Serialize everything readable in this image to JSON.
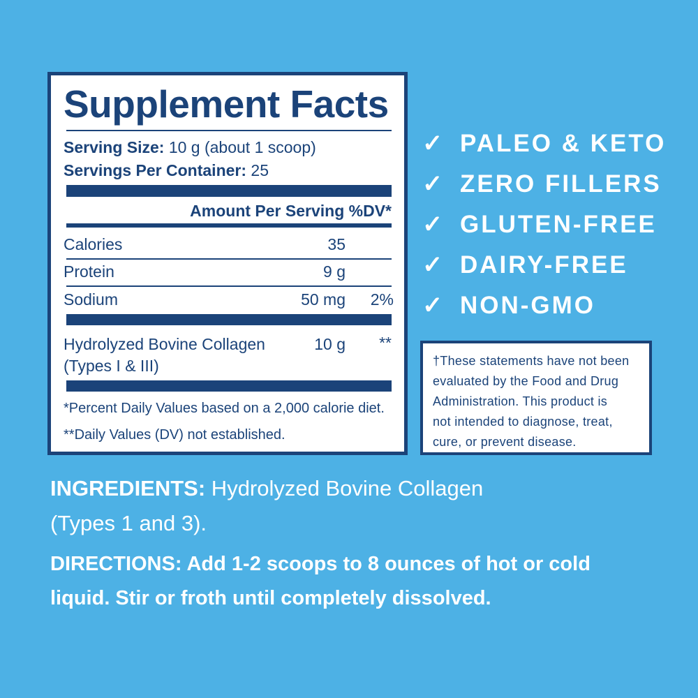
{
  "facts": {
    "title": "Supplement Facts",
    "serving_size_label": "Serving Size:",
    "serving_size_value": " 10 g (about 1 scoop)",
    "servings_label": "Servings Per Container:",
    "servings_value": " 25",
    "amount_header": "Amount Per Serving %DV*",
    "rows": [
      {
        "name": "Calories",
        "amount": "35",
        "dv": ""
      },
      {
        "name": "Protein",
        "amount": "9 g",
        "dv": ""
      },
      {
        "name": "Sodium",
        "amount": "50 mg",
        "dv": "2%"
      },
      {
        "name": "Hydrolyzed Bovine Collagen",
        "name2": "(Types I & III)",
        "amount": "10 g",
        "dv": "**"
      }
    ],
    "footnote1": "*Percent Daily Values based on a 2,000 calorie diet.",
    "footnote2": "**Daily Values (DV) not established."
  },
  "claims": [
    {
      "icon": "check-icon",
      "label": "PALEO & KETO"
    },
    {
      "icon": "check-icon",
      "label": "ZERO FILLERS"
    },
    {
      "icon": "check-icon",
      "label": "GLUTEN-FREE"
    },
    {
      "icon": "check-icon",
      "label": "DAIRY-FREE"
    },
    {
      "icon": "check-icon",
      "label": "NON-GMO"
    }
  ],
  "disclaimer": [
    "†These statements have not been",
    "evaluated by the Food and Drug",
    "Administration. This product is",
    "not intended to diagnose, treat,",
    "cure, or prevent disease."
  ],
  "ingredients": {
    "label": "INGREDIENTS:",
    "line1": " Hydrolyzed Bovine Collagen",
    "line2": "(Types 1 and 3)."
  },
  "directions": {
    "line1": "DIRECTIONS: Add 1-2 scoops to 8 ounces of hot or cold",
    "line2": "liquid. Stir or froth until completely dissolved."
  },
  "colors": {
    "background": "#4db1e5",
    "navy": "#1b4379",
    "text_light": "#ffffff"
  }
}
